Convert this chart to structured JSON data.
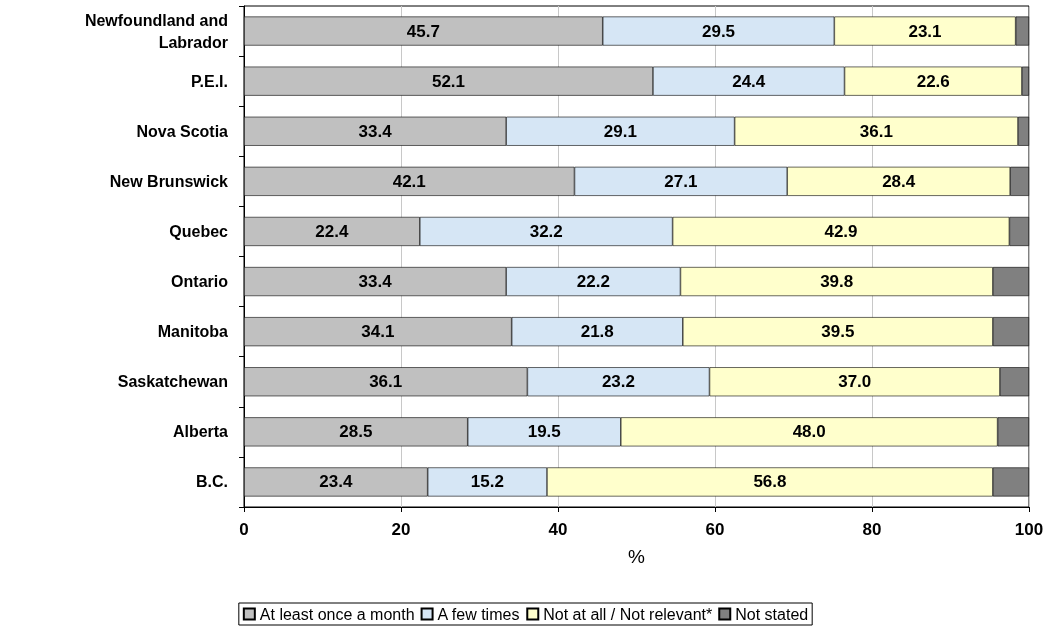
{
  "chart_data": {
    "type": "bar",
    "orientation": "horizontal",
    "stacked": true,
    "xlabel": "%",
    "categories": [
      "Newfoundland and\nLabrador",
      "P.E.I.",
      "Nova Scotia",
      "New Brunswick",
      "Quebec",
      "Ontario",
      "Manitoba",
      "Saskatchewan",
      "Alberta",
      "B.C."
    ],
    "series": [
      {
        "name": "At least once a month",
        "color": "#c0c0c0",
        "values": [
          45.7,
          52.1,
          33.4,
          42.1,
          22.4,
          33.4,
          34.1,
          36.1,
          28.5,
          23.4
        ],
        "value_labels": [
          "45.7",
          "52.1",
          "33.4",
          "42.1",
          "22.4",
          "33.4",
          "34.1",
          "36.1",
          "28.5",
          "23.4"
        ]
      },
      {
        "name": "A few times",
        "color": "#d6e6f5",
        "values": [
          29.5,
          24.4,
          29.1,
          27.1,
          32.2,
          22.2,
          21.8,
          23.2,
          19.5,
          15.2
        ],
        "value_labels": [
          "29.5",
          "24.4",
          "29.1",
          "27.1",
          "32.2",
          "22.2",
          "21.8",
          "23.2",
          "19.5",
          "15.2"
        ]
      },
      {
        "name": "Not at all / Not relevant*",
        "color": "#ffffcc",
        "values": [
          23.1,
          22.6,
          36.1,
          28.4,
          42.9,
          39.8,
          39.5,
          37.0,
          48.0,
          56.8
        ],
        "value_labels": [
          "23.1",
          "22.6",
          "36.1",
          "28.4",
          "42.9",
          "39.8",
          "39.5",
          "37.0",
          "48.0",
          "56.8"
        ]
      },
      {
        "name": "Not stated",
        "color": "#808080",
        "values": [
          1.7,
          0.9,
          1.4,
          2.4,
          2.5,
          4.6,
          4.6,
          3.7,
          4.0,
          4.6
        ]
      }
    ],
    "xlim": [
      0,
      100
    ],
    "xticks": [
      0,
      20,
      40,
      60,
      80,
      100
    ],
    "grid": "x",
    "legend": "bottom"
  }
}
